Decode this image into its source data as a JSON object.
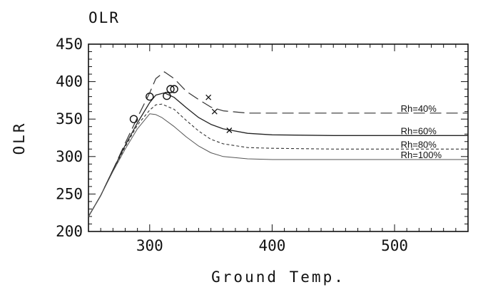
{
  "chart_data": {
    "type": "line",
    "title": "OLR",
    "xlabel": "Ground Temp.",
    "ylabel": "OLR",
    "xlim": [
      250,
      560
    ],
    "ylim": [
      200,
      450
    ],
    "xticks": [
      300,
      400,
      500
    ],
    "yticks": [
      200,
      250,
      300,
      350,
      400,
      450
    ],
    "grid": false,
    "series": [
      {
        "name": "Rh=40%",
        "style": "long-dash",
        "color": "#333333",
        "x": [
          250,
          260,
          270,
          280,
          290,
          300,
          305,
          312,
          320,
          330,
          340,
          350,
          360,
          380,
          400,
          450,
          500,
          560
        ],
        "y": [
          220,
          248,
          282,
          318,
          352,
          385,
          404,
          413,
          404,
          387,
          376,
          366,
          361,
          358,
          358,
          358,
          358,
          358
        ]
      },
      {
        "name": "Rh=60%",
        "style": "solid",
        "color": "#222222",
        "x": [
          250,
          260,
          270,
          280,
          290,
          300,
          305,
          312,
          320,
          330,
          340,
          350,
          360,
          380,
          400,
          450,
          500,
          560
        ],
        "y": [
          220,
          248,
          282,
          315,
          345,
          372,
          382,
          385,
          379,
          365,
          352,
          343,
          337,
          331,
          329,
          328,
          328,
          328
        ]
      },
      {
        "name": "Rh=80%",
        "style": "dashed",
        "color": "#333333",
        "x": [
          250,
          260,
          270,
          280,
          290,
          300,
          305,
          310,
          320,
          330,
          340,
          350,
          360,
          380,
          400,
          450,
          500,
          560
        ],
        "y": [
          220,
          248,
          281,
          313,
          342,
          362,
          369,
          370,
          363,
          348,
          334,
          323,
          317,
          312,
          311,
          310,
          310,
          310
        ]
      },
      {
        "name": "Rh=100%",
        "style": "solid-thin",
        "color": "#555555",
        "x": [
          250,
          260,
          270,
          280,
          290,
          300,
          305,
          310,
          320,
          330,
          340,
          350,
          360,
          380,
          400,
          450,
          500,
          560
        ],
        "y": [
          220,
          248,
          280,
          310,
          337,
          357,
          356,
          352,
          340,
          326,
          314,
          305,
          300,
          297,
          296,
          296,
          296,
          296
        ]
      }
    ],
    "markers": {
      "circles": [
        {
          "x": 287,
          "y": 350
        },
        {
          "x": 300,
          "y": 380
        },
        {
          "x": 314,
          "y": 381
        },
        {
          "x": 317,
          "y": 390
        },
        {
          "x": 320,
          "y": 390
        }
      ],
      "crosses": [
        {
          "x": 348,
          "y": 379
        },
        {
          "x": 353,
          "y": 360
        },
        {
          "x": 365,
          "y": 335
        }
      ]
    }
  }
}
